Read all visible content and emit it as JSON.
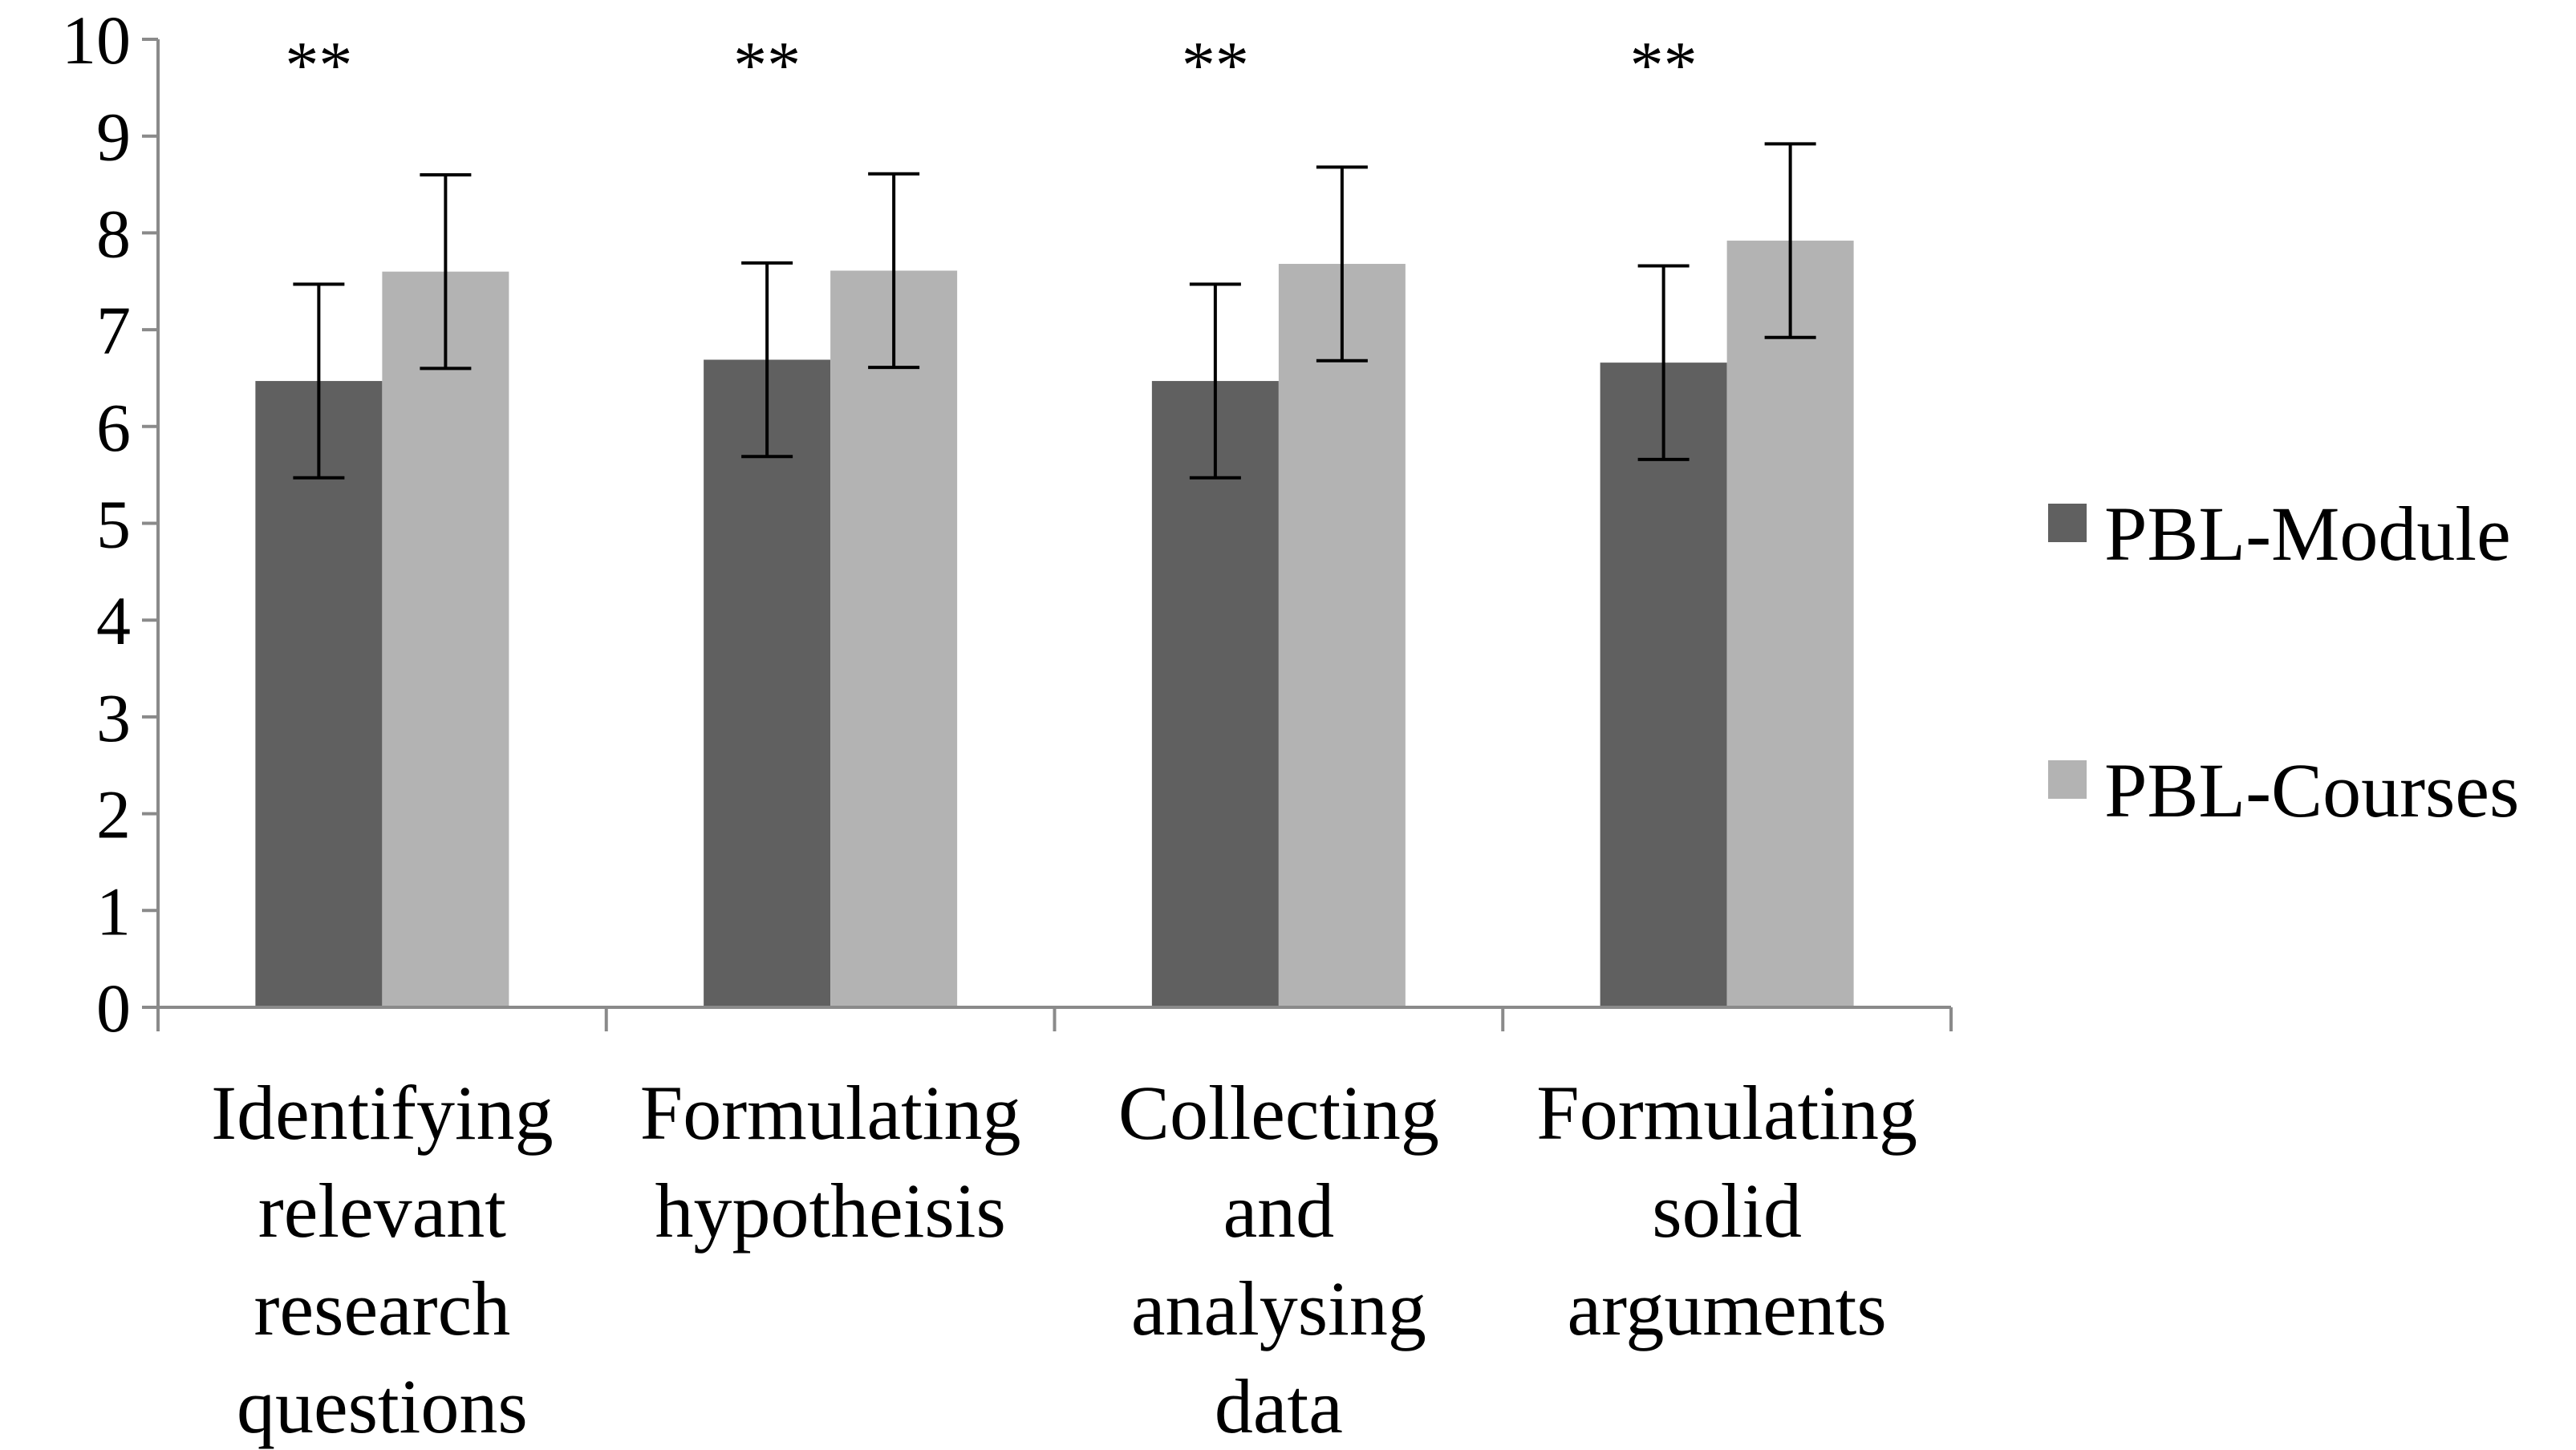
{
  "chart_data": {
    "type": "bar",
    "categories": [
      [
        "Identifying",
        "relevant",
        "research",
        "questions"
      ],
      [
        "Formulating",
        "hypotheisis"
      ],
      [
        "Collecting",
        "and",
        "analysing",
        "data"
      ],
      [
        "Formulating",
        "solid",
        "arguments"
      ]
    ],
    "series": [
      {
        "name": "PBL-Module",
        "color": "#606060",
        "values": [
          6.47,
          6.69,
          6.47,
          6.66
        ],
        "error": [
          1.0,
          1.0,
          1.0,
          1.0
        ]
      },
      {
        "name": "PBL-Courses",
        "color": "#b3b3b3",
        "values": [
          7.6,
          7.61,
          7.68,
          7.92
        ],
        "error": [
          1.0,
          1.0,
          1.0,
          1.0
        ]
      }
    ],
    "significance": [
      "**",
      "**",
      "**",
      "**"
    ],
    "ylim": [
      0,
      10
    ],
    "yticks": [
      0,
      1,
      2,
      3,
      4,
      5,
      6,
      7,
      8,
      9,
      10
    ],
    "grid": false,
    "legend_position": "right"
  }
}
